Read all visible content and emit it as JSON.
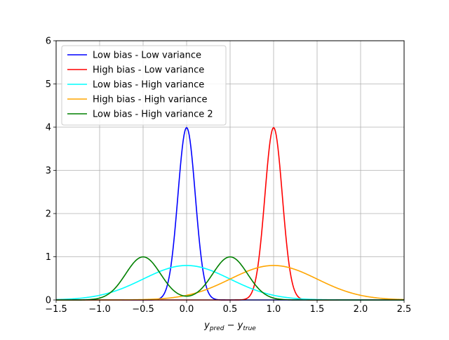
{
  "chart_data": {
    "type": "line",
    "title": "",
    "xlabel": "y_pred − y_true",
    "xlabel_parts": {
      "y1": "y",
      "sub1": "pred",
      "minus": " − ",
      "y2": "y",
      "sub2": "true"
    },
    "ylabel": "",
    "xlim": [
      -1.5,
      2.5
    ],
    "ylim": [
      0,
      6
    ],
    "xticks": [
      "−1.5",
      "−1.0",
      "−0.5",
      "0.0",
      "0.5",
      "1.0",
      "1.5",
      "2.0",
      "2.5"
    ],
    "yticks": [
      "0",
      "1",
      "2",
      "3",
      "4",
      "5",
      "6"
    ],
    "grid": true,
    "legend_position": "top-left",
    "series": [
      {
        "name": "Low bias - Low variance",
        "color": "#0000ff",
        "components": [
          {
            "weight": 1,
            "mean": 0.0,
            "sd": 0.1
          }
        ]
      },
      {
        "name": "High bias - Low variance",
        "color": "#ff0000",
        "components": [
          {
            "weight": 1,
            "mean": 1.0,
            "sd": 0.1
          }
        ]
      },
      {
        "name": "Low bias - High variance",
        "color": "#00ffff",
        "components": [
          {
            "weight": 1,
            "mean": 0.0,
            "sd": 0.5
          }
        ]
      },
      {
        "name": "High bias - High variance",
        "color": "#ffa500",
        "components": [
          {
            "weight": 1,
            "mean": 1.0,
            "sd": 0.5
          }
        ]
      },
      {
        "name": "Low bias - High variance 2",
        "color": "#008000",
        "components": [
          {
            "weight": 0.5,
            "mean": -0.5,
            "sd": 0.2
          },
          {
            "weight": 0.5,
            "mean": 0.5,
            "sd": 0.2
          }
        ]
      }
    ]
  }
}
